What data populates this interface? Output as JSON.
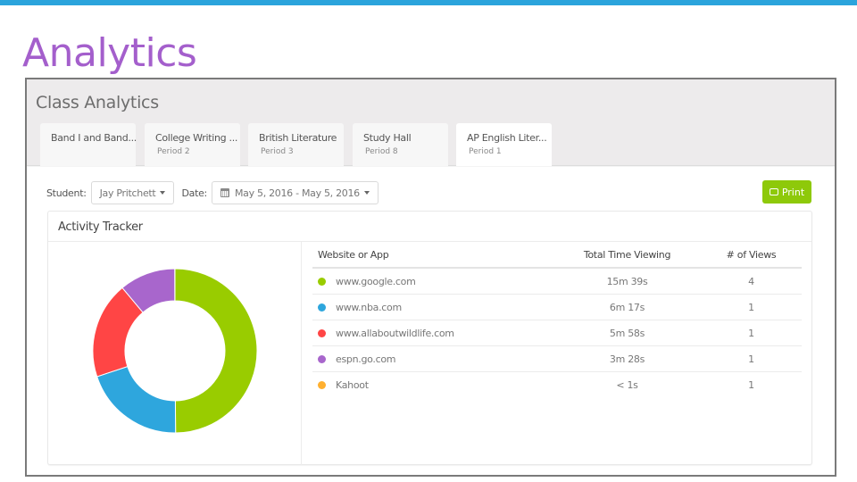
{
  "page": {
    "title": "Analytics",
    "accent_bar_color": "#2ba4dc",
    "title_color": "#a45fcc"
  },
  "panel": {
    "title": "Class Analytics",
    "tabs": [
      {
        "name": "Band I and Band...",
        "period": ""
      },
      {
        "name": "College Writing ...",
        "period": "Period 2"
      },
      {
        "name": "British Literature",
        "period": "Period 3"
      },
      {
        "name": "Study Hall",
        "period": "Period 8"
      },
      {
        "name": "AP English Liter...",
        "period": "Period 1",
        "active": true
      }
    ]
  },
  "filters": {
    "student_label": "Student:",
    "student_value": "Jay Pritchett",
    "date_label": "Date:",
    "date_value": "May 5, 2016 - May 5, 2016",
    "print_label": "Print",
    "print_color": "#8ec90a"
  },
  "activity": {
    "title": "Activity Tracker",
    "columns": [
      "Website or App",
      "Total Time Viewing",
      "# of Views"
    ],
    "rows": [
      {
        "site": "www.google.com",
        "time": "15m 39s",
        "views": "4",
        "color": "#99cc00"
      },
      {
        "site": "www.nba.com",
        "time": "6m 17s",
        "views": "1",
        "color": "#2ea6dd"
      },
      {
        "site": "www.allaboutwildlife.com",
        "time": "5m 58s",
        "views": "1",
        "color": "#ff4545"
      },
      {
        "site": "espn.go.com",
        "time": "3m 28s",
        "views": "1",
        "color": "#a866cc"
      },
      {
        "site": "Kahoot",
        "time": "< 1s",
        "views": "1",
        "color": "#ffb030"
      }
    ]
  },
  "chart_data": {
    "type": "pie",
    "subtype": "donut",
    "title": "Activity Tracker",
    "categories": [
      "www.google.com",
      "www.nba.com",
      "www.allaboutwildlife.com",
      "espn.go.com",
      "Kahoot"
    ],
    "values": [
      939,
      377,
      358,
      208,
      0.5
    ],
    "units": "seconds",
    "colors": [
      "#99cc00",
      "#2ea6dd",
      "#ff4545",
      "#a866cc",
      "#ffb030"
    ]
  }
}
